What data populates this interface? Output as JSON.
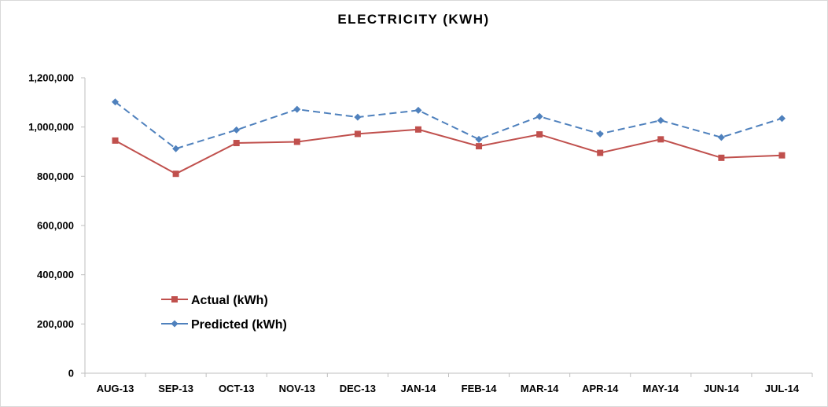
{
  "chart_data": {
    "type": "line",
    "title": "ELECTRICITY (KWH)",
    "xlabel": "",
    "ylabel": "",
    "categories": [
      "AUG-13",
      "SEP-13",
      "OCT-13",
      "NOV-13",
      "DEC-13",
      "JAN-14",
      "FEB-14",
      "MAR-14",
      "APR-14",
      "MAY-14",
      "JUN-14",
      "JUL-14"
    ],
    "ylim": [
      0,
      1200000
    ],
    "yticks": [
      0,
      200000,
      400000,
      600000,
      800000,
      1000000,
      1200000
    ],
    "ytick_labels": [
      "0",
      "200,000",
      "400,000",
      "600,000",
      "800,000",
      "1,000,000",
      "1,200,000"
    ],
    "grid": false,
    "legend_position": "lower-left",
    "series": [
      {
        "name": "Actual (kWh)",
        "color": "#c0504d",
        "line_style": "solid",
        "marker": "square",
        "values": [
          945000,
          810000,
          935000,
          940000,
          972000,
          990000,
          922000,
          970000,
          895000,
          950000,
          875000,
          885000
        ]
      },
      {
        "name": "Predicted (kWh)",
        "color": "#4f81bd",
        "line_style": "dashed",
        "marker": "diamond",
        "values": [
          1102000,
          912000,
          988000,
          1072000,
          1040000,
          1068000,
          950000,
          1043000,
          972000,
          1027000,
          958000,
          1035000
        ]
      }
    ]
  }
}
